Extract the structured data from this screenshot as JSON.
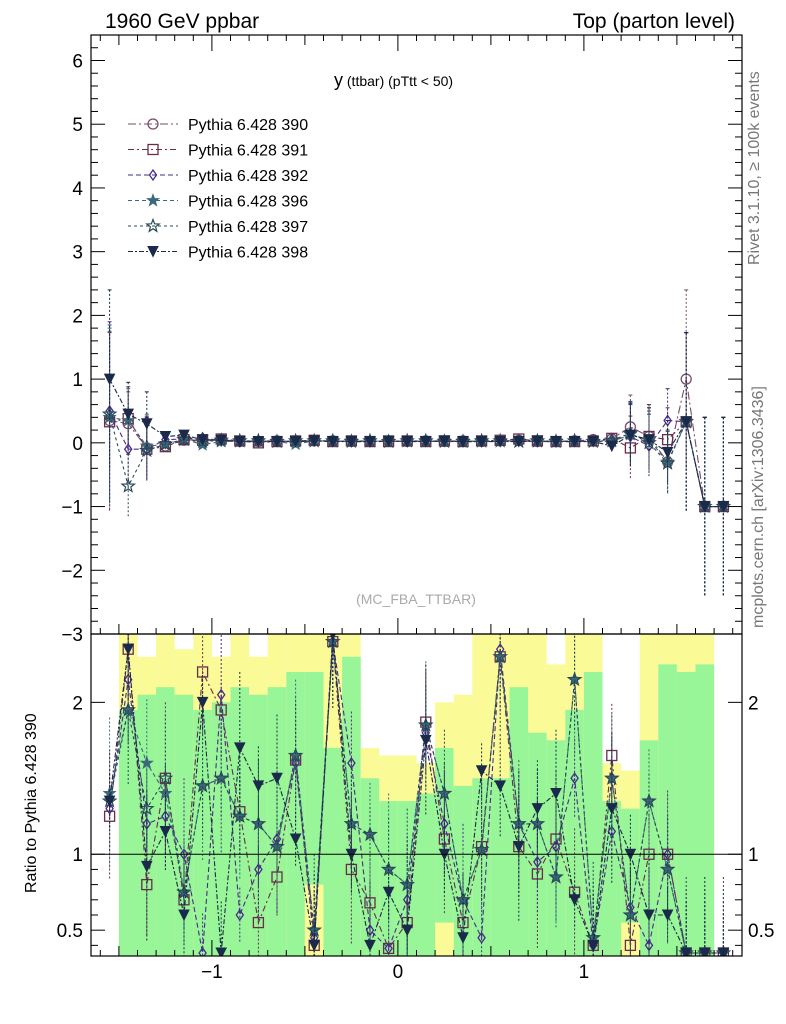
{
  "header": {
    "left_title": "1960 GeV ppbar",
    "right_title": "Top (parton level)"
  },
  "side_labels": {
    "rivet": "Rivet 3.1.10, ≥ 100k events",
    "mcplots": "mcplots.cern.ch [arXiv:1306.3436]"
  },
  "plot_title": {
    "main": "y",
    "sub": " (ttbar) ",
    "cut": "(pTtt < 50)"
  },
  "watermark": "(MC_FBA_TTBAR)",
  "ratio_ylabel": "Ratio to Pythia 6.428 390",
  "colors": {
    "band_green": "#98f598",
    "band_yellow": "#fafa96",
    "s390": "#7a4a6a",
    "s391": "#6a2e4a",
    "s392": "#4a2a8a",
    "s396": "#3a6a7a",
    "s397": "#2a4a5a",
    "s398": "#1a2a4a"
  },
  "chart_data": {
    "type": "line",
    "x": [
      -1.55,
      -1.45,
      -1.35,
      -1.25,
      -1.15,
      -1.05,
      -0.95,
      -0.85,
      -0.75,
      -0.65,
      -0.55,
      -0.45,
      -0.35,
      -0.25,
      -0.15,
      -0.05,
      0.05,
      0.15,
      0.25,
      0.35,
      0.45,
      0.55,
      0.65,
      0.75,
      0.85,
      0.95,
      1.05,
      1.15,
      1.25,
      1.35,
      1.45,
      1.55,
      1.65,
      1.75
    ],
    "xlim": [
      -1.65,
      1.85
    ],
    "main": {
      "ylim": [
        -3,
        6.4
      ],
      "yticks": [
        -3,
        -2,
        -1,
        0,
        1,
        2,
        3,
        4,
        5,
        6
      ],
      "series": [
        {
          "name": "Pythia 6.428 390",
          "marker": "circle",
          "values": [
            0.35,
            0.3,
            -0.08,
            -0.05,
            0.04,
            0.03,
            0.05,
            0.02,
            0.02,
            0.03,
            0.02,
            0.03,
            0.03,
            0.02,
            0.02,
            0.03,
            0.02,
            0.03,
            0.02,
            0.03,
            0.02,
            0.03,
            0.04,
            0.02,
            0.02,
            0.03,
            0.05,
            0.06,
            0.25,
            0.1,
            -0.3,
            1.0,
            -1.0,
            -1.0
          ]
        },
        {
          "name": "Pythia 6.428 391",
          "marker": "square",
          "values": [
            0.33,
            0.38,
            -0.1,
            -0.06,
            0.05,
            0.04,
            0.06,
            0.03,
            0.0,
            0.02,
            0.03,
            0.04,
            0.02,
            0.03,
            0.02,
            0.02,
            0.03,
            0.02,
            0.03,
            0.02,
            0.03,
            0.04,
            0.06,
            0.03,
            0.02,
            0.02,
            0.03,
            0.07,
            -0.08,
            0.1,
            0.05,
            0.33,
            -1.0,
            -1.0
          ]
        },
        {
          "name": "Pythia 6.428 392",
          "marker": "diamond",
          "values": [
            0.5,
            -0.1,
            -0.1,
            0.05,
            0.06,
            0.08,
            0.03,
            0.02,
            0.03,
            0.03,
            0.02,
            0.03,
            0.03,
            0.02,
            0.02,
            0.03,
            0.02,
            0.03,
            0.03,
            0.02,
            0.02,
            0.03,
            0.03,
            0.02,
            0.02,
            0.03,
            0.03,
            0.05,
            0.1,
            -0.05,
            0.35,
            0.33,
            -1.0,
            -1.0
          ]
        },
        {
          "name": "Pythia 6.428 396",
          "marker": "star",
          "values": [
            0.4,
            0.35,
            -0.05,
            -0.03,
            0.06,
            -0.03,
            0.02,
            0.03,
            0.03,
            0.02,
            -0.02,
            0.03,
            0.02,
            0.03,
            0.03,
            0.02,
            0.03,
            0.02,
            0.03,
            0.03,
            0.02,
            0.03,
            0.03,
            0.02,
            0.03,
            0.02,
            0.02,
            0.02,
            0.13,
            0.05,
            -0.3,
            0.33,
            -1.0,
            -1.0
          ]
        },
        {
          "name": "Pythia 6.428 397",
          "marker": "star-open",
          "values": [
            0.45,
            -0.68,
            -0.12,
            -0.02,
            0.05,
            0.02,
            0.04,
            0.03,
            0.03,
            0.02,
            0.03,
            0.03,
            0.03,
            0.02,
            0.03,
            0.02,
            0.03,
            0.03,
            0.02,
            0.02,
            0.03,
            0.03,
            0.02,
            0.03,
            0.02,
            0.03,
            0.02,
            0.04,
            0.15,
            0.0,
            -0.32,
            0.33,
            -1.0,
            -1.0
          ]
        },
        {
          "name": "Pythia 6.428 398",
          "marker": "triangle-down",
          "values": [
            1.0,
            0.45,
            0.3,
            0.1,
            0.12,
            0.05,
            0.04,
            0.02,
            0.02,
            0.02,
            0.02,
            0.03,
            0.02,
            0.02,
            0.02,
            0.03,
            0.02,
            0.02,
            0.03,
            0.02,
            0.02,
            0.02,
            0.02,
            0.03,
            0.02,
            0.02,
            0.02,
            -0.05,
            0.12,
            0.05,
            -0.15,
            0.33,
            -1.0,
            -1.0
          ]
        }
      ]
    },
    "ratio": {
      "ylim": [
        0.33,
        2.45
      ],
      "yticks": [
        0.5,
        1,
        2
      ],
      "reference": 1,
      "band_x": [
        -1.5,
        -1.4,
        -1.3,
        -1.2,
        -1.1,
        -1.0,
        -0.9,
        -0.8,
        -0.7,
        -0.6,
        -0.5,
        -0.4,
        -0.3,
        -0.2,
        -0.1,
        0.0,
        0.1,
        0.2,
        0.3,
        0.4,
        0.5,
        0.6,
        0.7,
        0.8,
        0.9,
        1.0,
        1.1,
        1.2,
        1.3,
        1.4,
        1.5,
        1.6
      ],
      "band_green": [
        1.95,
        2.05,
        2.1,
        2.05,
        1.95,
        2.0,
        2.1,
        2.05,
        2.1,
        2.2,
        2.2,
        1.7,
        2.3,
        1.5,
        1.35,
        1.35,
        1.4,
        1.7,
        1.45,
        1.5,
        1.5,
        2.1,
        1.8,
        1.75,
        1.95,
        2.2,
        1.35,
        1.3,
        1.75,
        2.25,
        2.2,
        2.25
      ],
      "band_yellow": [
        2.45,
        2.3,
        2.45,
        2.35,
        2.45,
        2.3,
        2.45,
        2.3,
        2.45,
        2.45,
        2.45,
        2.45,
        2.45,
        1.7,
        1.65,
        1.65,
        1.6,
        2.0,
        2.05,
        2.45,
        2.45,
        2.45,
        2.45,
        2.25,
        2.45,
        2.45,
        1.6,
        1.55,
        2.45,
        2.45,
        2.45,
        2.45
      ],
      "yellow_low": [
        [
          -0.5,
          -0.4,
          0.8
        ],
        [
          0.2,
          0.3,
          0.55
        ],
        [
          1.2,
          1.3,
          0.55
        ]
      ],
      "series_values": {
        "Pythia 6.428 391": [
          1.25,
          2.35,
          0.8,
          1.5,
          0.7,
          2.2,
          1.95,
          1.28,
          0.55,
          0.85,
          1.62,
          0.4,
          2.4,
          0.9,
          0.68,
          0.38,
          0.55,
          1.87,
          1.1,
          0.55,
          1.05,
          2.3,
          1.05,
          0.87,
          1.1,
          0.75,
          0.4,
          1.65,
          0.4,
          1.0,
          1.0,
          0.35,
          0.35,
          0.35
        ],
        "Pythia 6.428 392": [
          1.3,
          2.15,
          1.2,
          1.25,
          1.0,
          0.35,
          2.05,
          0.6,
          0.9,
          1.1,
          1.6,
          0.45,
          2.4,
          1.6,
          0.5,
          0.38,
          0.7,
          1.8,
          1.2,
          0.7,
          0.45,
          2.35,
          1.2,
          0.95,
          1.05,
          1.5,
          0.4,
          1.15,
          0.65,
          0.4,
          1.0,
          0.35,
          0.35,
          0.35
        ],
        "Pythia 6.428 396": [
          1.4,
          1.95,
          1.6,
          1.4,
          0.75,
          1.45,
          1.5,
          1.25,
          1.2,
          1.05,
          1.65,
          0.5,
          2.4,
          1.2,
          1.13,
          0.9,
          0.8,
          1.85,
          1.4,
          0.7,
          1.03,
          2.3,
          1.2,
          1.2,
          0.85,
          2.15,
          0.45,
          1.5,
          0.6,
          1.35,
          0.9,
          0.35,
          0.35,
          0.35
        ],
        "Pythia 6.428 397": [
          1.35,
          1.95,
          1.3,
          1.5,
          0.75,
          1.45,
          1.5,
          1.25,
          1.2,
          1.05,
          1.65,
          0.5,
          2.4,
          1.2,
          1.13,
          0.9,
          0.8,
          1.85,
          1.4,
          0.7,
          1.03,
          2.3,
          1.2,
          1.2,
          0.85,
          2.15,
          0.45,
          1.5,
          0.6,
          1.35,
          0.9,
          0.35,
          0.35,
          0.35
        ],
        "Pythia 6.428 398": [
          1.35,
          2.35,
          0.92,
          1.15,
          0.6,
          2.0,
          0.35,
          1.7,
          1.45,
          1.5,
          1.1,
          0.4,
          2.45,
          1.0,
          0.4,
          0.75,
          0.5,
          1.75,
          1.0,
          0.45,
          1.55,
          1.45,
          1.05,
          1.3,
          1.4,
          0.7,
          0.4,
          1.3,
          1.0,
          0.6,
          0.6,
          0.35,
          0.35,
          0.35
        ]
      }
    },
    "xticks": [
      -1,
      0,
      1
    ],
    "xtick_labels": [
      "−1",
      "0",
      "1"
    ],
    "legend": "top-left"
  }
}
